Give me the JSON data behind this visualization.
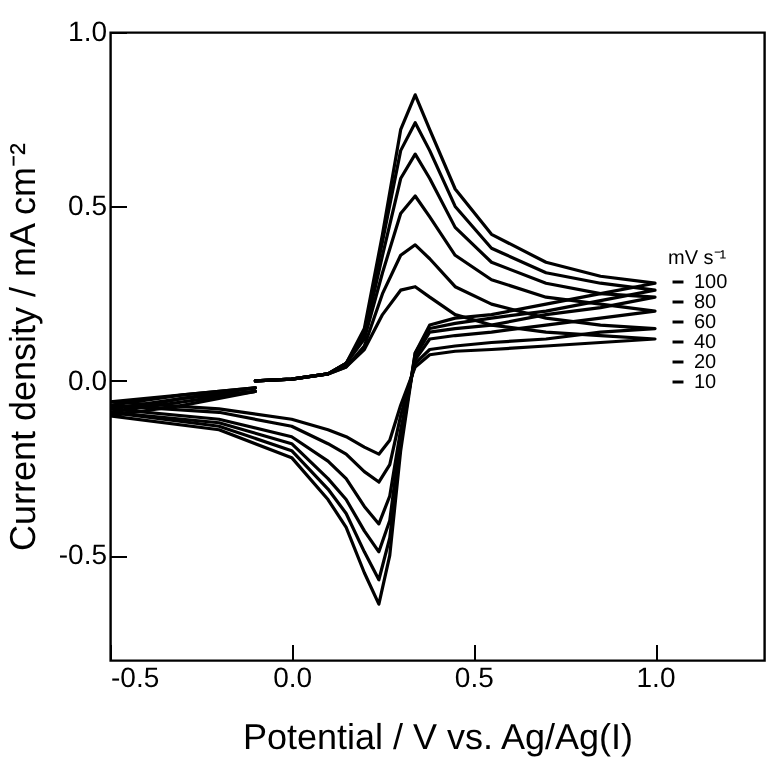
{
  "chart_data": {
    "type": "line",
    "xlabel": "Potential / V vs. Ag/Ag(I)",
    "ylabel": "Current density / mA cm⁻²",
    "legend_title": "mV s⁻¹",
    "legend": "right",
    "xlim": [
      -0.5,
      1.3
    ],
    "ylim": [
      -0.8,
      1.0
    ],
    "xticks": [
      -0.5,
      {
        "value": 0,
        "label": "0.0"
      },
      0.5,
      {
        "value": 1,
        "label": "1.0"
      }
    ],
    "yticks": [
      -0.5,
      {
        "value": 0,
        "label": "0.0"
      },
      0.5,
      {
        "value": 1,
        "label": "1.0"
      }
    ],
    "grid": false,
    "series": [
      {
        "name": "100",
        "color": "#000000",
        "x": [
          -0.1,
          0,
          0.1,
          0.15,
          0.2,
          0.25,
          0.3,
          0.34,
          0.38,
          0.45,
          0.55,
          0.7,
          0.85,
          1.0,
          0.85,
          0.7,
          0.55,
          0.45,
          0.38,
          0.34,
          0.3,
          0.27,
          0.24,
          0.2,
          0.15,
          0.1,
          0,
          -0.2,
          -0.5,
          -0.3,
          -0.1
        ],
        "values": [
          0,
          0.005,
          0.02,
          0.05,
          0.15,
          0.42,
          0.72,
          0.82,
          0.72,
          0.55,
          0.42,
          0.34,
          0.3,
          0.28,
          0.25,
          0.22,
          0.19,
          0.18,
          0.16,
          0.08,
          -0.2,
          -0.5,
          -0.64,
          -0.55,
          -0.42,
          -0.34,
          -0.22,
          -0.14,
          -0.1,
          -0.07,
          -0.03
        ]
      },
      {
        "name": "80",
        "color": "#000000",
        "x": [
          -0.1,
          0,
          0.1,
          0.15,
          0.2,
          0.25,
          0.3,
          0.34,
          0.38,
          0.45,
          0.55,
          0.7,
          0.85,
          1.0,
          0.85,
          0.7,
          0.55,
          0.45,
          0.38,
          0.34,
          0.3,
          0.27,
          0.24,
          0.2,
          0.15,
          0.1,
          0,
          -0.2,
          -0.5,
          -0.3,
          -0.1
        ],
        "values": [
          0,
          0.005,
          0.02,
          0.05,
          0.14,
          0.4,
          0.66,
          0.74,
          0.66,
          0.5,
          0.38,
          0.31,
          0.28,
          0.26,
          0.23,
          0.2,
          0.18,
          0.165,
          0.15,
          0.08,
          -0.18,
          -0.45,
          -0.57,
          -0.49,
          -0.38,
          -0.31,
          -0.2,
          -0.13,
          -0.09,
          -0.06,
          -0.03
        ]
      },
      {
        "name": "60",
        "color": "#000000",
        "x": [
          -0.1,
          0,
          0.1,
          0.15,
          0.2,
          0.25,
          0.3,
          0.34,
          0.38,
          0.45,
          0.55,
          0.7,
          0.85,
          1.0,
          0.85,
          0.7,
          0.55,
          0.45,
          0.38,
          0.34,
          0.3,
          0.27,
          0.24,
          0.2,
          0.15,
          0.1,
          0,
          -0.2,
          -0.5,
          -0.3,
          -0.1
        ],
        "values": [
          0,
          0.005,
          0.02,
          0.05,
          0.13,
          0.36,
          0.58,
          0.65,
          0.58,
          0.44,
          0.34,
          0.28,
          0.25,
          0.24,
          0.21,
          0.19,
          0.16,
          0.15,
          0.14,
          0.07,
          -0.16,
          -0.4,
          -0.49,
          -0.43,
          -0.34,
          -0.28,
          -0.18,
          -0.12,
          -0.09,
          -0.05,
          -0.03
        ]
      },
      {
        "name": "40",
        "color": "#000000",
        "x": [
          -0.1,
          0,
          0.1,
          0.15,
          0.2,
          0.25,
          0.3,
          0.34,
          0.38,
          0.45,
          0.55,
          0.7,
          0.85,
          1.0,
          0.85,
          0.7,
          0.55,
          0.45,
          0.38,
          0.34,
          0.3,
          0.27,
          0.24,
          0.2,
          0.15,
          0.1,
          0,
          -0.2,
          -0.5,
          -0.3,
          -0.1
        ],
        "values": [
          0,
          0.005,
          0.02,
          0.05,
          0.12,
          0.31,
          0.48,
          0.53,
          0.47,
          0.36,
          0.29,
          0.24,
          0.22,
          0.2,
          0.18,
          0.16,
          0.14,
          0.13,
          0.12,
          0.06,
          -0.14,
          -0.33,
          -0.41,
          -0.36,
          -0.28,
          -0.23,
          -0.16,
          -0.11,
          -0.08,
          -0.05,
          -0.02
        ]
      },
      {
        "name": "20",
        "color": "#000000",
        "x": [
          -0.1,
          0,
          0.1,
          0.15,
          0.2,
          0.25,
          0.3,
          0.34,
          0.38,
          0.45,
          0.55,
          0.7,
          0.85,
          1.0,
          0.85,
          0.7,
          0.55,
          0.45,
          0.38,
          0.34,
          0.3,
          0.27,
          0.24,
          0.2,
          0.15,
          0.1,
          0,
          -0.2,
          -0.5,
          -0.3,
          -0.1
        ],
        "values": [
          0,
          0.005,
          0.02,
          0.04,
          0.1,
          0.25,
          0.36,
          0.39,
          0.35,
          0.27,
          0.22,
          0.18,
          0.16,
          0.15,
          0.14,
          0.12,
          0.11,
          0.1,
          0.09,
          0.05,
          -0.1,
          -0.24,
          -0.29,
          -0.26,
          -0.21,
          -0.18,
          -0.13,
          -0.09,
          -0.07,
          -0.04,
          -0.02
        ]
      },
      {
        "name": "10",
        "color": "#000000",
        "x": [
          -0.1,
          0,
          0.1,
          0.15,
          0.2,
          0.25,
          0.3,
          0.34,
          0.38,
          0.45,
          0.55,
          0.7,
          0.85,
          1.0,
          0.85,
          0.7,
          0.55,
          0.45,
          0.38,
          0.34,
          0.3,
          0.27,
          0.24,
          0.2,
          0.15,
          0.1,
          0,
          -0.2,
          -0.5,
          -0.3,
          -0.1
        ],
        "values": [
          0,
          0.005,
          0.02,
          0.04,
          0.09,
          0.19,
          0.26,
          0.27,
          0.24,
          0.19,
          0.16,
          0.14,
          0.13,
          0.12,
          0.11,
          0.1,
          0.09,
          0.085,
          0.075,
          0.04,
          -0.07,
          -0.17,
          -0.21,
          -0.19,
          -0.16,
          -0.14,
          -0.11,
          -0.08,
          -0.06,
          -0.04,
          -0.02
        ]
      }
    ]
  }
}
